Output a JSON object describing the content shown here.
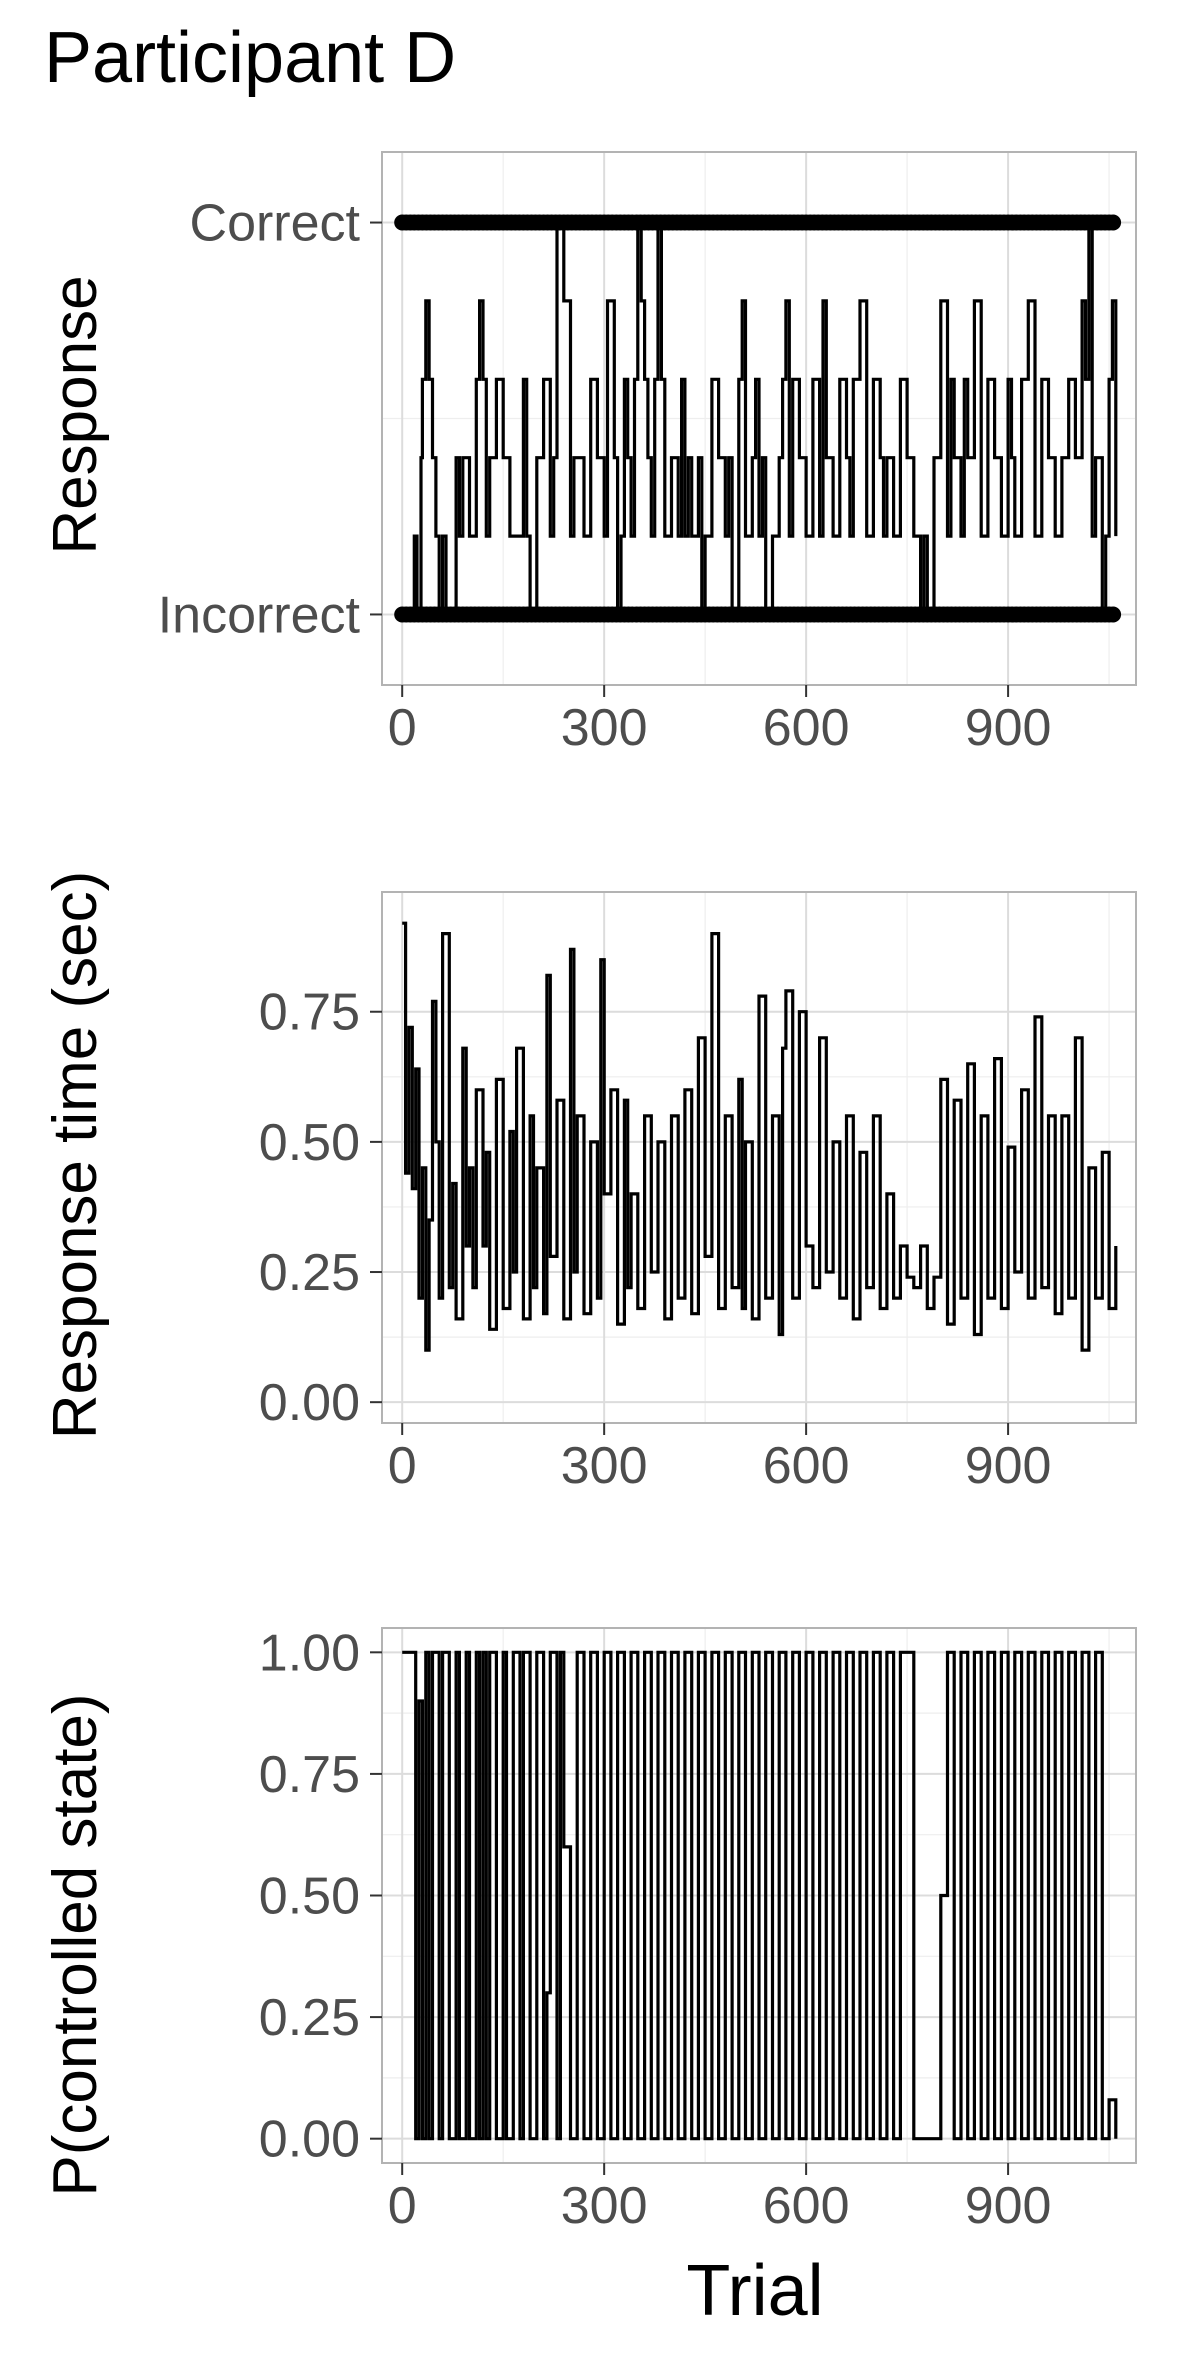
{
  "figure": {
    "title": "Participant D",
    "xlabel": "Trial"
  },
  "style": {
    "line_color": "#000000",
    "panel_border": "#b3b3b3",
    "grid_major": "#dcdcdc",
    "grid_minor": "#eeeeee",
    "tick_text": "#4d4d4d"
  },
  "chart_data": [
    {
      "type": "line",
      "panel": "response",
      "ylabel": "Response",
      "xlim": [
        -30,
        1090
      ],
      "ylim": [
        -0.18,
        1.18
      ],
      "xticks": [
        0,
        300,
        600,
        900
      ],
      "xtick_labels": [
        "0",
        "300",
        "600",
        "900"
      ],
      "yticks": [
        0,
        1
      ],
      "ytick_labels": [
        "Incorrect",
        "Correct"
      ],
      "grid": true,
      "points_overlay": true,
      "series": [
        {
          "x": [
            0,
            18,
            22,
            28,
            30,
            35,
            40,
            45,
            50,
            55,
            60,
            65,
            80,
            85,
            90,
            100,
            110,
            115,
            120,
            125,
            130,
            140,
            150,
            160,
            180,
            185,
            190,
            200,
            210,
            220,
            225,
            230,
            240,
            250,
            255,
            270,
            280,
            290,
            300,
            305,
            315,
            320,
            325,
            330,
            335,
            340,
            345,
            350,
            355,
            360,
            365,
            370,
            375,
            380,
            385,
            390,
            400,
            410,
            415,
            420,
            425,
            430,
            440,
            445,
            450,
            460,
            470,
            480,
            485,
            490,
            500,
            505,
            510,
            520,
            525,
            530,
            535,
            540,
            550,
            560,
            565,
            570,
            575,
            580,
            590,
            600,
            610,
            620,
            625,
            630,
            640,
            650,
            660,
            665,
            670,
            680,
            690,
            700,
            710,
            715,
            720,
            730,
            740,
            750,
            760,
            770,
            775,
            780,
            790,
            800,
            810,
            815,
            820,
            830,
            835,
            840,
            850,
            860,
            870,
            880,
            890,
            900,
            905,
            910,
            920,
            930,
            940,
            950,
            960,
            970,
            980,
            990,
            1000,
            1010,
            1015,
            1020,
            1025,
            1030,
            1040,
            1045,
            1050,
            1055,
            1060
          ],
          "values": [
            0,
            0.2,
            0,
            0.4,
            0.6,
            0.8,
            0.6,
            0.4,
            0.2,
            0,
            0.2,
            0,
            0.4,
            0.2,
            0.4,
            0.2,
            0.6,
            0.8,
            0.6,
            0.2,
            0.4,
            0.6,
            0.4,
            0.2,
            0.6,
            0.2,
            0,
            0.4,
            0.6,
            0.2,
            0.4,
            1,
            0.8,
            0.2,
            0.4,
            0.2,
            0.6,
            0.4,
            0.2,
            0.8,
            0.4,
            0,
            0.2,
            0.6,
            0.4,
            0.2,
            0.6,
            1,
            0.8,
            0.6,
            0.4,
            0.2,
            0.6,
            1,
            0.6,
            0.2,
            0.4,
            0.2,
            0.6,
            0.2,
            0.4,
            0.2,
            0.4,
            0,
            0.2,
            0.6,
            0.4,
            0.2,
            0.4,
            0,
            0.6,
            0.8,
            0.2,
            0.4,
            0.6,
            0.2,
            0.4,
            0,
            0.2,
            0.4,
            0.6,
            0.8,
            0.2,
            0.6,
            0.4,
            0.2,
            0.6,
            0.2,
            0.8,
            0.4,
            0.2,
            0.6,
            0.4,
            0.2,
            0.6,
            0.8,
            0.2,
            0.6,
            0.4,
            0.2,
            0.4,
            0.2,
            0.6,
            0.4,
            0.2,
            0,
            0.2,
            0,
            0.4,
            0.8,
            0.2,
            0.6,
            0.4,
            0.2,
            0.6,
            0.4,
            0.8,
            0.2,
            0.6,
            0.4,
            0.2,
            0.6,
            0.4,
            0.2,
            0.6,
            0.8,
            0.2,
            0.6,
            0.4,
            0.2,
            0.4,
            0.6,
            0.4,
            0.8,
            0.6,
            1,
            0.2,
            0.4,
            0,
            0.2,
            0.6,
            0.8,
            0.2
          ]
        }
      ]
    },
    {
      "type": "line",
      "panel": "response_time",
      "ylabel": "Response time (sec)",
      "xlim": [
        -30,
        1090
      ],
      "ylim": [
        -0.04,
        0.98
      ],
      "xticks": [
        0,
        300,
        600,
        900
      ],
      "xtick_labels": [
        "0",
        "300",
        "600",
        "900"
      ],
      "yticks": [
        0,
        0.25,
        0.5,
        0.75
      ],
      "ytick_labels": [
        "0.00",
        "0.25",
        "0.50",
        "0.75"
      ],
      "grid": true,
      "series": [
        {
          "x": [
            0,
            5,
            10,
            15,
            20,
            25,
            30,
            35,
            40,
            45,
            50,
            55,
            60,
            70,
            75,
            80,
            90,
            95,
            100,
            105,
            110,
            120,
            125,
            130,
            140,
            150,
            160,
            165,
            170,
            180,
            190,
            195,
            200,
            210,
            215,
            220,
            230,
            240,
            250,
            255,
            260,
            270,
            280,
            290,
            295,
            300,
            310,
            320,
            330,
            335,
            340,
            350,
            360,
            370,
            380,
            390,
            400,
            410,
            420,
            430,
            440,
            450,
            460,
            470,
            480,
            490,
            500,
            505,
            510,
            520,
            530,
            540,
            550,
            560,
            565,
            570,
            580,
            590,
            600,
            610,
            620,
            630,
            640,
            650,
            660,
            670,
            680,
            690,
            700,
            710,
            720,
            730,
            740,
            750,
            760,
            770,
            780,
            790,
            800,
            810,
            820,
            830,
            840,
            850,
            860,
            870,
            880,
            890,
            900,
            910,
            920,
            930,
            940,
            950,
            960,
            970,
            980,
            990,
            1000,
            1010,
            1020,
            1030,
            1040,
            1050,
            1060
          ],
          "values": [
            0.92,
            0.44,
            0.72,
            0.41,
            0.64,
            0.2,
            0.45,
            0.1,
            0.35,
            0.77,
            0.5,
            0.2,
            0.9,
            0.22,
            0.42,
            0.16,
            0.68,
            0.3,
            0.45,
            0.22,
            0.6,
            0.3,
            0.48,
            0.14,
            0.62,
            0.18,
            0.52,
            0.25,
            0.68,
            0.16,
            0.55,
            0.22,
            0.45,
            0.17,
            0.82,
            0.28,
            0.58,
            0.16,
            0.87,
            0.25,
            0.55,
            0.17,
            0.5,
            0.2,
            0.85,
            0.4,
            0.6,
            0.15,
            0.58,
            0.22,
            0.4,
            0.18,
            0.55,
            0.25,
            0.5,
            0.16,
            0.55,
            0.2,
            0.6,
            0.17,
            0.7,
            0.28,
            0.9,
            0.18,
            0.55,
            0.22,
            0.62,
            0.18,
            0.5,
            0.16,
            0.78,
            0.2,
            0.55,
            0.13,
            0.68,
            0.79,
            0.2,
            0.75,
            0.3,
            0.22,
            0.7,
            0.25,
            0.5,
            0.2,
            0.55,
            0.16,
            0.48,
            0.22,
            0.55,
            0.18,
            0.4,
            0.2,
            0.3,
            0.24,
            0.22,
            0.3,
            0.18,
            0.24,
            0.62,
            0.15,
            0.58,
            0.2,
            0.65,
            0.13,
            0.55,
            0.2,
            0.66,
            0.18,
            0.49,
            0.25,
            0.6,
            0.2,
            0.74,
            0.22,
            0.55,
            0.17,
            0.55,
            0.2,
            0.7,
            0.1,
            0.45,
            0.2,
            0.48,
            0.18,
            0.3
          ]
        }
      ]
    },
    {
      "type": "line",
      "panel": "controlled_state",
      "ylabel": "P(controlled state)",
      "xlabel": "Trial",
      "xlim": [
        -30,
        1090
      ],
      "ylim": [
        -0.05,
        1.05
      ],
      "xticks": [
        0,
        300,
        600,
        900
      ],
      "xtick_labels": [
        "0",
        "300",
        "600",
        "900"
      ],
      "yticks": [
        0,
        0.25,
        0.5,
        0.75,
        1
      ],
      "ytick_labels": [
        "0.00",
        "0.25",
        "0.50",
        "0.75",
        "1.00"
      ],
      "grid": true,
      "series": [
        {
          "x": [
            0,
            18,
            20,
            25,
            30,
            35,
            40,
            45,
            55,
            60,
            70,
            80,
            85,
            95,
            100,
            110,
            115,
            120,
            125,
            130,
            140,
            150,
            155,
            165,
            175,
            180,
            190,
            200,
            210,
            215,
            220,
            230,
            235,
            240,
            250,
            260,
            270,
            280,
            290,
            300,
            310,
            320,
            330,
            340,
            350,
            360,
            370,
            380,
            390,
            400,
            410,
            420,
            430,
            440,
            450,
            460,
            470,
            480,
            490,
            500,
            510,
            520,
            530,
            540,
            550,
            560,
            570,
            580,
            590,
            600,
            610,
            620,
            630,
            640,
            650,
            660,
            670,
            680,
            690,
            700,
            710,
            720,
            730,
            740,
            750,
            760,
            770,
            780,
            790,
            800,
            810,
            820,
            830,
            840,
            850,
            860,
            870,
            880,
            890,
            900,
            910,
            920,
            930,
            940,
            950,
            960,
            970,
            980,
            990,
            1000,
            1010,
            1020,
            1030,
            1040,
            1050,
            1060
          ],
          "values": [
            1,
            1,
            0,
            0.9,
            0,
            1,
            0,
            1,
            0,
            1,
            0,
            1,
            0,
            1,
            0,
            1,
            0,
            1,
            0,
            1,
            0,
            1,
            0,
            1,
            0,
            1,
            0,
            1,
            0,
            0.3,
            1,
            0,
            1,
            0.6,
            0,
            1,
            0,
            1,
            0,
            1,
            0,
            1,
            0,
            1,
            0,
            1,
            0,
            1,
            0,
            1,
            0,
            1,
            0,
            1,
            0,
            1,
            0,
            1,
            0,
            1,
            0,
            1,
            0,
            1,
            0,
            1,
            0,
            1,
            0,
            1,
            0,
            1,
            0,
            1,
            0,
            1,
            0,
            1,
            0,
            1,
            0,
            1,
            0,
            1,
            1,
            0,
            0,
            0,
            0,
            0.5,
            1,
            0,
            1,
            0,
            1,
            0,
            1,
            0,
            1,
            0,
            1,
            0,
            1,
            0,
            1,
            0,
            1,
            0,
            1,
            0,
            1,
            0,
            1,
            0,
            0.08,
            0
          ]
        }
      ]
    }
  ]
}
